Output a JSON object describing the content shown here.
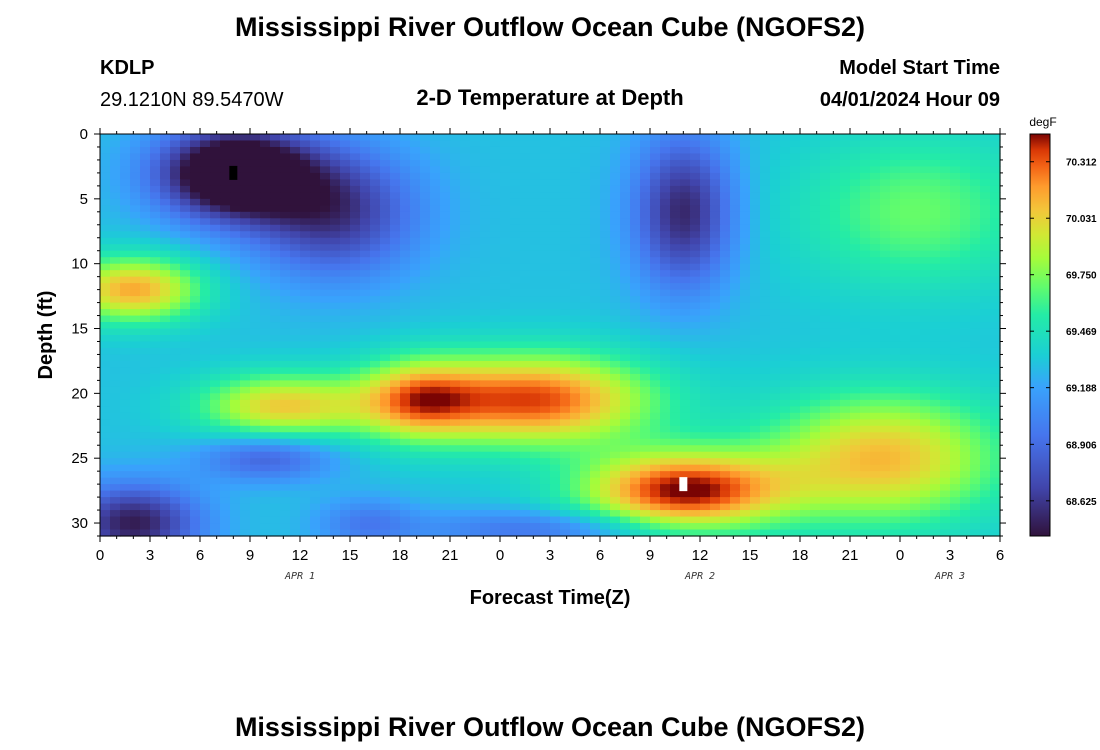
{
  "header": {
    "title": "Mississippi River Outflow Ocean Cube (NGOFS2)",
    "station": "KDLP",
    "coords": "29.1210N  89.5470W",
    "subtitle": "2-D Temperature at Depth",
    "model_start_label": "Model Start Time",
    "model_start_value": "04/01/2024 Hour 09"
  },
  "footer": {
    "title": "Mississippi River Outflow Ocean Cube (NGOFS2)"
  },
  "chart_data": {
    "type": "heatmap",
    "xlabel": "Forecast Time(Z)",
    "ylabel": "Depth (ft)",
    "xlim": [
      0,
      54
    ],
    "ylim": [
      31,
      0
    ],
    "x_ticks": [
      0,
      3,
      6,
      9,
      12,
      15,
      18,
      21,
      24,
      27,
      30,
      33,
      36,
      39,
      42,
      45,
      48,
      51,
      54
    ],
    "x_tick_labels": [
      "0",
      "3",
      "6",
      "9",
      "12",
      "15",
      "18",
      "21",
      "0",
      "3",
      "6",
      "9",
      "12",
      "15",
      "18",
      "21",
      "0",
      "3",
      "6"
    ],
    "y_ticks": [
      0,
      5,
      10,
      15,
      20,
      25,
      30
    ],
    "y_tick_labels": [
      "0",
      "5",
      "10",
      "15",
      "20",
      "25",
      "30"
    ],
    "date_labels": [
      {
        "x": 12,
        "text": "APR 1"
      },
      {
        "x": 36,
        "text": "APR 2"
      },
      {
        "x": 51,
        "text": "APR 3"
      }
    ],
    "colorbar": {
      "unit": "degF",
      "min": 68.45,
      "max": 70.45,
      "ticks": [
        70.312,
        70.031,
        69.75,
        69.469,
        69.188,
        68.906,
        68.625
      ],
      "tick_labels": [
        "70.312",
        "70.031",
        "69.750",
        "69.469",
        "69.188",
        "68.906",
        "68.625"
      ]
    },
    "markers": [
      {
        "name": "min-marker",
        "x": 8,
        "y": 3,
        "color": "#000000"
      },
      {
        "name": "max-marker",
        "x": 35,
        "y": 27,
        "color": "#ffffff"
      }
    ],
    "features": [
      {
        "cx": 8,
        "cy": 3,
        "sx": 4.5,
        "sy": 3.5,
        "amp": -1.25
      },
      {
        "cx": 14,
        "cy": 6,
        "sx": 5,
        "sy": 5,
        "amp": -0.7
      },
      {
        "cx": 35,
        "cy": 6,
        "sx": 3,
        "sy": 6,
        "amp": -0.75
      },
      {
        "cx": 2,
        "cy": 12,
        "sx": 4,
        "sy": 2.5,
        "amp": 0.85
      },
      {
        "cx": 26,
        "cy": 20.5,
        "sx": 7,
        "sy": 3.5,
        "amp": 1.05
      },
      {
        "cx": 11,
        "cy": 21,
        "sx": 5,
        "sy": 2.5,
        "amp": 0.75
      },
      {
        "cx": 19,
        "cy": 20.5,
        "sx": 3.5,
        "sy": 3,
        "amp": 0.7
      },
      {
        "cx": 35,
        "cy": 27.5,
        "sx": 6,
        "sy": 3,
        "amp": 1.15
      },
      {
        "cx": 47,
        "cy": 25,
        "sx": 7,
        "sy": 5,
        "amp": 0.8
      },
      {
        "cx": 2,
        "cy": 30,
        "sx": 4,
        "sy": 3,
        "amp": -0.8
      },
      {
        "cx": 16,
        "cy": 30,
        "sx": 3,
        "sy": 2,
        "amp": -0.3
      },
      {
        "cx": 49,
        "cy": 6,
        "sx": 7,
        "sy": 6,
        "amp": 0.4
      },
      {
        "cx": 10,
        "cy": 25,
        "sx": 4,
        "sy": 1.8,
        "amp": -0.45
      },
      {
        "cx": 26,
        "cy": 30.5,
        "sx": 7,
        "sy": 1.5,
        "amp": -0.35
      }
    ],
    "base_value": 69.3
  }
}
